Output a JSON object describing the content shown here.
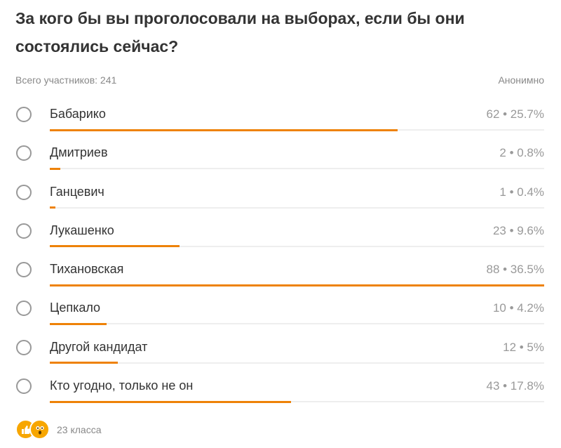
{
  "poll": {
    "question": "За кого бы вы проголосовали на выборах, если бы они состоялись сейчас?",
    "participants_text": "Всего участников: 241",
    "mode_text": "Анонимно",
    "accent_color": "#ee8208",
    "options": [
      {
        "label": "Бабарико",
        "votes": 62,
        "percent": 25.7,
        "result_text": "62 • 25.7%"
      },
      {
        "label": "Дмитриев",
        "votes": 2,
        "percent": 0.8,
        "result_text": "2 • 0.8%"
      },
      {
        "label": "Ганцевич",
        "votes": 1,
        "percent": 0.4,
        "result_text": "1 • 0.4%"
      },
      {
        "label": "Лукашенко",
        "votes": 23,
        "percent": 9.6,
        "result_text": "23 • 9.6%"
      },
      {
        "label": "Тихановская",
        "votes": 88,
        "percent": 36.5,
        "result_text": "88 • 36.5%"
      },
      {
        "label": "Цепкало",
        "votes": 10,
        "percent": 4.2,
        "result_text": "10 • 4.2%"
      },
      {
        "label": "Другой кандидат",
        "votes": 12,
        "percent": 5,
        "result_text": "12 • 5%"
      },
      {
        "label": "Кто угодно, только не он",
        "votes": 43,
        "percent": 17.8,
        "result_text": "43 • 17.8%"
      }
    ]
  },
  "footer": {
    "reactions": [
      "thumbs-up-icon",
      "surprised-face-icon"
    ],
    "likes_text": "23 класса"
  }
}
